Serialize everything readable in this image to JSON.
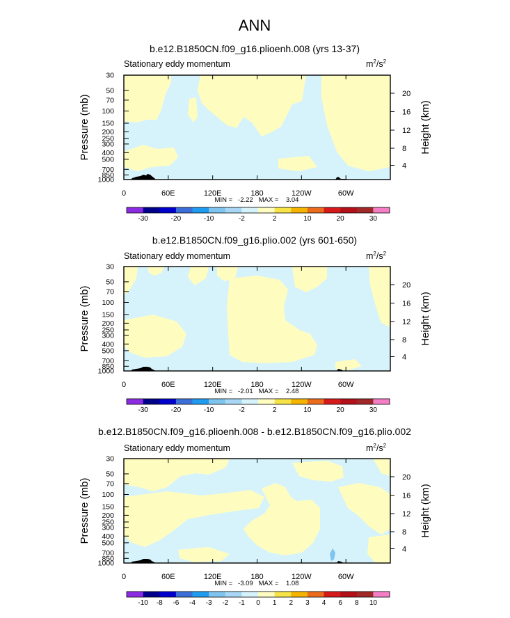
{
  "figure": {
    "title": "ANN"
  },
  "chart_data": [
    {
      "type": "heatmap",
      "title": "b.e12.B1850CN.f09_g16.plioenh.008 (yrs 13-37)",
      "subtitle": "Stationary eddy momentum",
      "units": "m²/s²",
      "units_base": "m",
      "units_mid": "/s",
      "units_exp": "2",
      "ylabel": "Pressure (mb)",
      "ylabel_right": "Height (km)",
      "x_ticks": [
        "0",
        "60E",
        "120E",
        "180",
        "120W",
        "60W"
      ],
      "x_values": [
        0,
        60,
        120,
        180,
        240,
        300
      ],
      "xlim": [
        0,
        360
      ],
      "y_ticks": [
        "30",
        "50",
        "70",
        "100",
        "150",
        "200",
        "250",
        "300",
        "400",
        "500",
        "700",
        "850",
        "1000"
      ],
      "y_values": [
        30,
        50,
        70,
        100,
        150,
        200,
        250,
        300,
        400,
        500,
        700,
        850,
        1000
      ],
      "ylim": [
        1000,
        30
      ],
      "y_scale": "log",
      "height_ticks": [
        "20",
        "16",
        "12",
        "8",
        "4"
      ],
      "height_values": [
        20,
        16,
        12,
        8,
        4
      ],
      "stats_text": "MIN =   -2.22   MAX =    3.04",
      "min": -2.22,
      "max": 3.04,
      "colorbar_labels": [
        "-30",
        "-20",
        "-10",
        "-2",
        "2",
        "10",
        "20",
        "30"
      ],
      "colorbar_levels": [
        -30,
        -25,
        -20,
        -15,
        -10,
        -5,
        -2,
        2,
        5,
        10,
        15,
        20,
        25,
        30
      ],
      "colorbar_colors": [
        "#8b2be2",
        "#00008b",
        "#0000cd",
        "#3c6ed8",
        "#1f9cf0",
        "#7fc4ef",
        "#a7d7f5",
        "#d6f3fb",
        "#fffcc0",
        "#f5e347",
        "#f4b400",
        "#ea6c1c",
        "#d61a1a",
        "#b3101a",
        "#a02828",
        "#f47ec5"
      ],
      "field": "p1"
    },
    {
      "type": "heatmap",
      "title": "b.e12.B1850CN.f09_g16.plio.002 (yrs 601-650)",
      "subtitle": "Stationary eddy momentum",
      "units": "m²/s²",
      "units_base": "m",
      "units_mid": "/s",
      "units_exp": "2",
      "ylabel": "Pressure (mb)",
      "ylabel_right": "Height (km)",
      "x_ticks": [
        "0",
        "60E",
        "120E",
        "180",
        "120W",
        "60W"
      ],
      "x_values": [
        0,
        60,
        120,
        180,
        240,
        300
      ],
      "xlim": [
        0,
        360
      ],
      "y_ticks": [
        "30",
        "50",
        "70",
        "100",
        "150",
        "200",
        "250",
        "300",
        "400",
        "500",
        "700",
        "850",
        "1000"
      ],
      "y_values": [
        30,
        50,
        70,
        100,
        150,
        200,
        250,
        300,
        400,
        500,
        700,
        850,
        1000
      ],
      "ylim": [
        1000,
        30
      ],
      "y_scale": "log",
      "height_ticks": [
        "20",
        "16",
        "12",
        "8",
        "4"
      ],
      "height_values": [
        20,
        16,
        12,
        8,
        4
      ],
      "stats_text": "MIN =   -2.01   MAX =    2.48",
      "min": -2.01,
      "max": 2.48,
      "colorbar_labels": [
        "-30",
        "-20",
        "-10",
        "-2",
        "2",
        "10",
        "20",
        "30"
      ],
      "colorbar_levels": [
        -30,
        -25,
        -20,
        -15,
        -10,
        -5,
        -2,
        2,
        5,
        10,
        15,
        20,
        25,
        30
      ],
      "colorbar_colors": [
        "#8b2be2",
        "#00008b",
        "#0000cd",
        "#3c6ed8",
        "#1f9cf0",
        "#7fc4ef",
        "#a7d7f5",
        "#d6f3fb",
        "#fffcc0",
        "#f5e347",
        "#f4b400",
        "#ea6c1c",
        "#d61a1a",
        "#b3101a",
        "#a02828",
        "#f47ec5"
      ],
      "field": "p2"
    },
    {
      "type": "heatmap",
      "title": "b.e12.B1850CN.f09_g16.plioenh.008 - b.e12.B1850CN.f09_g16.plio.002",
      "subtitle": "Stationary eddy momentum",
      "units": "m²/s²",
      "units_base": "m",
      "units_mid": "/s",
      "units_exp": "2",
      "ylabel": "Pressure (mb)",
      "ylabel_right": "Height (km)",
      "x_ticks": [
        "0",
        "60E",
        "120E",
        "180",
        "120W",
        "60W"
      ],
      "x_values": [
        0,
        60,
        120,
        180,
        240,
        300
      ],
      "xlim": [
        0,
        360
      ],
      "y_ticks": [
        "30",
        "50",
        "70",
        "100",
        "150",
        "200",
        "250",
        "300",
        "400",
        "500",
        "700",
        "850",
        "1000"
      ],
      "y_values": [
        30,
        50,
        70,
        100,
        150,
        200,
        250,
        300,
        400,
        500,
        700,
        850,
        1000
      ],
      "ylim": [
        1000,
        30
      ],
      "y_scale": "log",
      "height_ticks": [
        "20",
        "16",
        "12",
        "8",
        "4"
      ],
      "height_values": [
        20,
        16,
        12,
        8,
        4
      ],
      "stats_text": "MIN =   -3.09   MAX =    1.08",
      "min": -3.09,
      "max": 1.08,
      "colorbar_labels": [
        "-10",
        "-8",
        "-6",
        "-4",
        "-3",
        "-2",
        "-1",
        "0",
        "1",
        "2",
        "3",
        "4",
        "6",
        "8",
        "10"
      ],
      "colorbar_levels": [
        -10,
        -8,
        -6,
        -4,
        -3,
        -2,
        -1,
        0,
        1,
        2,
        3,
        4,
        6,
        8,
        10
      ],
      "colorbar_colors": [
        "#8b2be2",
        "#00008b",
        "#0000cd",
        "#3c6ed8",
        "#1f9cf0",
        "#7fc4ef",
        "#a7d7f5",
        "#d6f3fb",
        "#fffcc0",
        "#f5e347",
        "#f4b400",
        "#ea6c1c",
        "#d61a1a",
        "#b3101a",
        "#a02828",
        "#f47ec5"
      ],
      "field": "diff"
    }
  ],
  "colors": {
    "negative_fill": "#d6f3fb",
    "positive_fill": "#fffcc0",
    "terrain": "#000000"
  }
}
